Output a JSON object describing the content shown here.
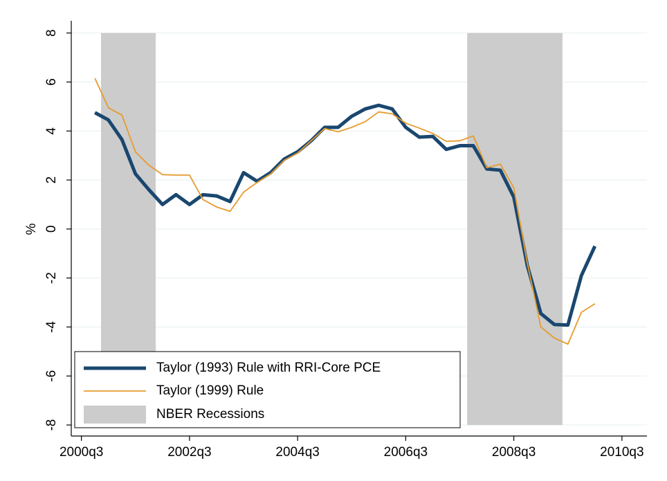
{
  "chart_data": {
    "type": "line",
    "ylabel": "%",
    "x": [
      163,
      164,
      165,
      166,
      167,
      168,
      169,
      170,
      171,
      172,
      173,
      174,
      175,
      176,
      177,
      178,
      179,
      180,
      181,
      182,
      183,
      184,
      185,
      186,
      187,
      188,
      189,
      190,
      191,
      192,
      193,
      194,
      195,
      196,
      197,
      198,
      199,
      200
    ],
    "series": [
      {
        "name": "Taylor (1993) Rule with RRI-Core PCE",
        "color": "#1a476f",
        "width": 5,
        "values": [
          4.75,
          4.45,
          3.65,
          2.25,
          1.6,
          1.0,
          1.4,
          1.0,
          1.4,
          1.35,
          1.12,
          2.3,
          1.95,
          2.3,
          2.85,
          3.15,
          3.6,
          4.15,
          4.15,
          4.6,
          4.9,
          5.05,
          4.9,
          4.15,
          3.75,
          3.78,
          3.25,
          3.4,
          3.4,
          2.45,
          2.4,
          1.3,
          -1.5,
          -3.45,
          -3.9,
          -3.92,
          -1.9,
          -0.7
        ]
      },
      {
        "name": "Taylor (1999) Rule",
        "color": "#e69b2d",
        "width": 1.8,
        "values": [
          6.15,
          4.95,
          4.65,
          3.15,
          2.6,
          2.22,
          2.2,
          2.2,
          1.2,
          0.9,
          0.72,
          1.5,
          1.9,
          2.25,
          2.8,
          3.1,
          3.6,
          4.1,
          3.97,
          4.15,
          4.38,
          4.78,
          4.7,
          4.32,
          4.12,
          3.9,
          3.58,
          3.6,
          3.8,
          2.5,
          2.65,
          1.68,
          -1.4,
          -4.0,
          -4.45,
          -4.7,
          -3.4,
          -3.05
        ]
      }
    ],
    "recessions": {
      "name": "NBER Recessions",
      "color": "#cccccc",
      "spans": [
        [
          163.45,
          167.5
        ],
        [
          190.55,
          197.6
        ]
      ],
      "range": [
        -8,
        8
      ]
    },
    "xlim": [
      161.25,
      203.85
    ],
    "xticks": [
      {
        "value": 162,
        "label": "2000q3"
      },
      {
        "value": 170,
        "label": "2002q3"
      },
      {
        "value": 178,
        "label": "2004q3"
      },
      {
        "value": 186,
        "label": "2006q3"
      },
      {
        "value": 194,
        "label": "2008q3"
      },
      {
        "value": 202,
        "label": "2010q3"
      }
    ],
    "ylim": [
      -8.45,
      8.5
    ],
    "yticks": [
      -8,
      -6,
      -4,
      -2,
      0,
      2,
      4,
      6,
      8
    ],
    "grid": true,
    "legend": "bottom-left"
  }
}
